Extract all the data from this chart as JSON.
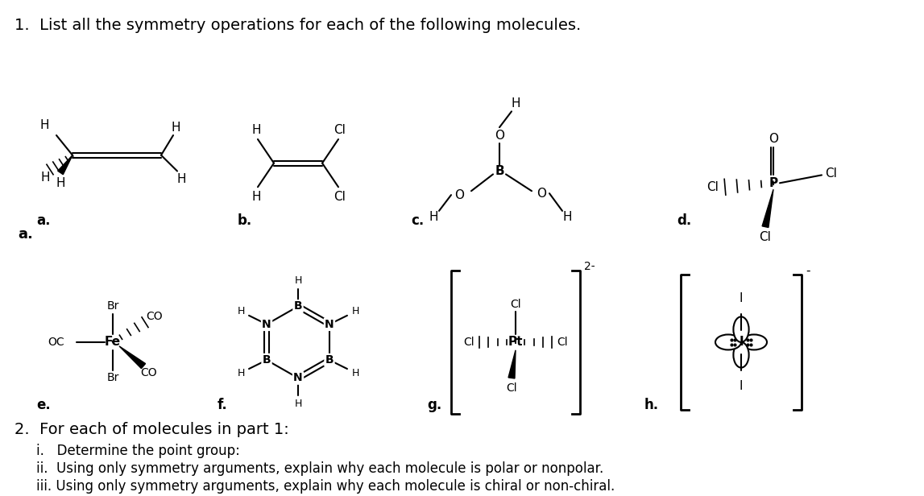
{
  "title_text": "1.  List all the symmetry operations for each of the following molecules.",
  "part2_header": "2.  For each of molecules in part 1:",
  "part2_i": "i.   Determine the point group:",
  "part2_ii": "ii.  Using only symmetry arguments, explain why each molecule is polar or nonpolar.",
  "part2_iii": "iii. Using only symmetry arguments, explain why each molecule is chiral or non-chiral.",
  "bg_color": "#ffffff",
  "text_color": "#000000",
  "font_size_title": 14,
  "font_size_body": 13,
  "fig_width": 11.47,
  "fig_height": 6.16
}
